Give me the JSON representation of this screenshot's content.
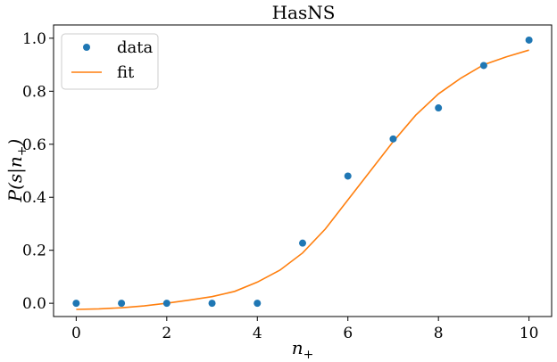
{
  "chart_data": {
    "type": "scatter",
    "title": "HasNS",
    "xlabel": "n",
    "xlabel_sub": "+",
    "ylabel": "P(s|n",
    "ylabel_sub": "+",
    "ylabel_close": ")",
    "xlim": [
      -0.5,
      10.5
    ],
    "ylim": [
      -0.05,
      1.05
    ],
    "xticks": [
      0,
      2,
      4,
      6,
      8,
      10
    ],
    "xtick_labels": [
      "0",
      "2",
      "4",
      "6",
      "8",
      "10"
    ],
    "yticks": [
      0.0,
      0.2,
      0.4,
      0.6,
      0.8,
      1.0
    ],
    "ytick_labels": [
      "0.0",
      "0.2",
      "0.4",
      "0.6",
      "0.8",
      "1.0"
    ],
    "grid": false,
    "legend_position": "top-left",
    "series": [
      {
        "name": "data",
        "kind": "scatter",
        "color": "#1f77b4",
        "x": [
          0,
          1,
          2,
          3,
          4,
          5,
          6,
          7,
          8,
          9,
          10
        ],
        "y": [
          0.0,
          0.0,
          0.0,
          0.0,
          0.0,
          0.227,
          0.48,
          0.62,
          0.737,
          0.897,
          0.993
        ]
      },
      {
        "name": "fit",
        "kind": "line",
        "color": "#ff7f0e",
        "x": [
          0,
          0.5,
          1,
          1.5,
          2,
          2.5,
          3,
          3.5,
          4,
          4.5,
          5,
          5.5,
          6,
          6.5,
          7,
          7.5,
          8,
          8.5,
          9,
          9.5,
          10
        ],
        "y": [
          -0.023,
          -0.021,
          -0.017,
          -0.01,
          0.0,
          0.012,
          0.025,
          0.045,
          0.08,
          0.125,
          0.19,
          0.28,
          0.39,
          0.5,
          0.61,
          0.71,
          0.79,
          0.85,
          0.9,
          0.93,
          0.955
        ]
      }
    ]
  }
}
